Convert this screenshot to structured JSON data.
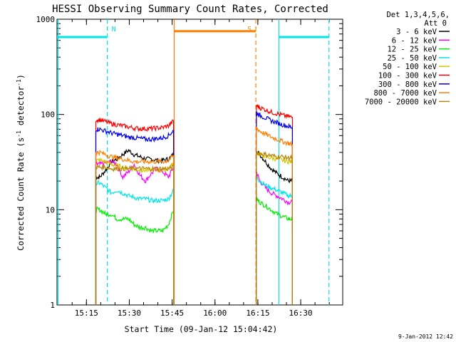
{
  "chart_data": {
    "type": "line",
    "title": "HESSI Observing Summary Count Rates, Corrected",
    "xlabel": "Start Time (09-Jan-12 15:04:42)",
    "ylabel_main": "Corrected Count Rate (s",
    "ylabel_sup1": "-1",
    "ylabel_mid": " detector",
    "ylabel_sup2": "-1",
    "ylabel_end": ")",
    "ylabel": "Corrected Count Rate (s-1 detector-1)",
    "yscale": "log",
    "ylim": [
      1,
      1000
    ],
    "xlim": [
      "15:04:42",
      "16:44:42"
    ],
    "x_ticks": [
      "15:15",
      "15:30",
      "15:45",
      "16:00",
      "16:15",
      "16:30"
    ],
    "x_tick_minutes": [
      10.3,
      25.3,
      40.3,
      55.3,
      70.3,
      85.3
    ],
    "y_ticks": [
      "1",
      "10",
      "100",
      "1000"
    ],
    "y_tick_values": [
      1,
      10,
      100,
      1000
    ],
    "legend_header": [
      "Det 1,3,4,5,6,",
      "Att 0"
    ],
    "legend_position": "outside-right",
    "timestamp": "9-Jan-2012 12:42",
    "flags": [
      {
        "label": "N",
        "color": "#00e6e6",
        "level": 650,
        "segments": [
          [
            0,
            17.6
          ],
          [
            77.7,
            95.2
          ]
        ]
      },
      {
        "label": "S",
        "color": "#ff7f00",
        "level": 750,
        "segments": [
          [
            41.0,
            69.6
          ]
        ]
      }
    ],
    "boundaries": [
      {
        "t": 0.4,
        "color": "#00e6e6",
        "style": "solid"
      },
      {
        "t": 17.6,
        "color": "#00e6e6",
        "style": "dashed"
      },
      {
        "t": 41.0,
        "color": "#ff7f00",
        "style": "solid"
      },
      {
        "t": 69.6,
        "color": "#ff7f00",
        "style": "dashed"
      },
      {
        "t": 77.7,
        "color": "#00e6e6",
        "style": "solid"
      },
      {
        "t": 95.2,
        "color": "#00e6e6",
        "style": "dashed"
      }
    ],
    "segments_minutes": [
      [
        13.5,
        41.0
      ],
      [
        69.6,
        82.5
      ]
    ],
    "series": [
      {
        "name": "3 - 6 keV",
        "color": "#000000",
        "seg1": [
          [
            13.6,
            22
          ],
          [
            15.0,
            22
          ],
          [
            17.0,
            26
          ],
          [
            19.0,
            32
          ],
          [
            21.0,
            34
          ],
          [
            23.0,
            38
          ],
          [
            25.0,
            42
          ],
          [
            27.0,
            38
          ],
          [
            29.0,
            36
          ],
          [
            31.0,
            34
          ],
          [
            33.0,
            34
          ],
          [
            35.0,
            33
          ],
          [
            37.0,
            33
          ],
          [
            39.0,
            34
          ],
          [
            40.8,
            38
          ]
        ],
        "seg2": [
          [
            69.8,
            42
          ],
          [
            71.0,
            38
          ],
          [
            73.0,
            32
          ],
          [
            75.0,
            27
          ],
          [
            77.0,
            24
          ],
          [
            79.0,
            22
          ],
          [
            81.0,
            20
          ],
          [
            82.4,
            20
          ]
        ]
      },
      {
        "name": "6 - 12 keV",
        "color": "#ff00ff",
        "seg1": [
          [
            13.6,
            30
          ],
          [
            15.0,
            30
          ],
          [
            17.0,
            31
          ],
          [
            19.0,
            32
          ],
          [
            21.0,
            30
          ],
          [
            23.0,
            22
          ],
          [
            25.0,
            25
          ],
          [
            27.0,
            30
          ],
          [
            29.0,
            23
          ],
          [
            31.0,
            20
          ],
          [
            33.0,
            24
          ],
          [
            35.0,
            27
          ],
          [
            37.0,
            25
          ],
          [
            39.0,
            22
          ],
          [
            40.8,
            28
          ]
        ],
        "seg2": [
          [
            69.8,
            25
          ],
          [
            71.0,
            20
          ],
          [
            73.0,
            17
          ],
          [
            75.0,
            15
          ],
          [
            77.0,
            14
          ],
          [
            79.0,
            13
          ],
          [
            81.0,
            12
          ],
          [
            82.4,
            12
          ]
        ]
      },
      {
        "name": "12 - 25 keV",
        "color": "#00ee00",
        "seg1": [
          [
            13.6,
            10
          ],
          [
            15.0,
            10
          ],
          [
            17.0,
            9
          ],
          [
            19.0,
            9
          ],
          [
            21.0,
            8
          ],
          [
            23.0,
            8
          ],
          [
            25.0,
            8
          ],
          [
            27.0,
            7
          ],
          [
            29.0,
            6.5
          ],
          [
            31.0,
            6.5
          ],
          [
            33.0,
            6
          ],
          [
            35.0,
            6
          ],
          [
            37.0,
            6
          ],
          [
            39.0,
            7
          ],
          [
            40.8,
            10
          ]
        ],
        "seg2": [
          [
            69.8,
            13
          ],
          [
            71.0,
            12
          ],
          [
            73.0,
            11
          ],
          [
            75.0,
            10
          ],
          [
            77.0,
            9
          ],
          [
            79.0,
            8.5
          ],
          [
            81.0,
            8
          ],
          [
            82.4,
            8
          ]
        ]
      },
      {
        "name": "25 - 50 keV",
        "color": "#00e6e6",
        "seg1": [
          [
            13.6,
            19
          ],
          [
            15.0,
            19
          ],
          [
            17.0,
            17
          ],
          [
            19.0,
            15
          ],
          [
            21.0,
            16
          ],
          [
            23.0,
            15
          ],
          [
            25.0,
            14
          ],
          [
            27.0,
            13.5
          ],
          [
            29.0,
            13
          ],
          [
            31.0,
            13
          ],
          [
            33.0,
            12.5
          ],
          [
            35.0,
            12.5
          ],
          [
            37.0,
            12.5
          ],
          [
            39.0,
            13
          ],
          [
            40.8,
            16
          ]
        ],
        "seg2": [
          [
            69.8,
            22
          ],
          [
            71.0,
            20
          ],
          [
            73.0,
            18
          ],
          [
            75.0,
            17
          ],
          [
            77.0,
            16
          ],
          [
            79.0,
            15
          ],
          [
            81.0,
            14
          ],
          [
            82.4,
            14
          ]
        ]
      },
      {
        "name": "50 - 100 keV",
        "color": "#d6c600",
        "seg1": [
          [
            13.6,
            33
          ],
          [
            15.0,
            33
          ],
          [
            17.0,
            32
          ],
          [
            19.0,
            30
          ],
          [
            21.0,
            29
          ],
          [
            23.0,
            28
          ],
          [
            25.0,
            27
          ],
          [
            27.0,
            27
          ],
          [
            29.0,
            26
          ],
          [
            31.0,
            26
          ],
          [
            33.0,
            26
          ],
          [
            35.0,
            26
          ],
          [
            37.0,
            26
          ],
          [
            39.0,
            27
          ],
          [
            40.8,
            31
          ]
        ],
        "seg2": [
          [
            69.8,
            40
          ],
          [
            71.0,
            38
          ],
          [
            73.0,
            36
          ],
          [
            75.0,
            35
          ],
          [
            77.0,
            34
          ],
          [
            79.0,
            33
          ],
          [
            81.0,
            32
          ],
          [
            82.4,
            32
          ]
        ]
      },
      {
        "name": "100 - 300 keV",
        "color": "#ff0000",
        "seg1": [
          [
            13.6,
            88
          ],
          [
            15.0,
            88
          ],
          [
            17.0,
            84
          ],
          [
            19.0,
            80
          ],
          [
            21.0,
            78
          ],
          [
            23.0,
            76
          ],
          [
            25.0,
            74
          ],
          [
            27.0,
            72
          ],
          [
            29.0,
            71
          ],
          [
            31.0,
            71
          ],
          [
            33.0,
            71
          ],
          [
            35.0,
            72
          ],
          [
            37.0,
            73
          ],
          [
            39.0,
            76
          ],
          [
            40.8,
            86
          ]
        ],
        "seg2": [
          [
            69.8,
            125
          ],
          [
            71.0,
            118
          ],
          [
            73.0,
            112
          ],
          [
            75.0,
            106
          ],
          [
            77.0,
            102
          ],
          [
            79.0,
            98
          ],
          [
            81.0,
            95
          ],
          [
            82.4,
            93
          ]
        ]
      },
      {
        "name": "300 - 800 keV",
        "color": "#0000ee",
        "seg1": [
          [
            13.6,
            70
          ],
          [
            15.0,
            70
          ],
          [
            17.0,
            67
          ],
          [
            19.0,
            64
          ],
          [
            21.0,
            62
          ],
          [
            23.0,
            60
          ],
          [
            25.0,
            58
          ],
          [
            27.0,
            57
          ],
          [
            29.0,
            56
          ],
          [
            31.0,
            55
          ],
          [
            33.0,
            55
          ],
          [
            35.0,
            56
          ],
          [
            37.0,
            57
          ],
          [
            39.0,
            60
          ],
          [
            40.8,
            68
          ]
        ],
        "seg2": [
          [
            69.8,
            105
          ],
          [
            71.0,
            98
          ],
          [
            73.0,
            92
          ],
          [
            75.0,
            86
          ],
          [
            77.0,
            82
          ],
          [
            79.0,
            78
          ],
          [
            81.0,
            75
          ],
          [
            82.4,
            73
          ]
        ]
      },
      {
        "name": "800 - 7000 keV",
        "color": "#ff7f00",
        "seg1": [
          [
            13.6,
            40
          ],
          [
            15.0,
            40
          ],
          [
            17.0,
            38
          ],
          [
            19.0,
            36
          ],
          [
            21.0,
            35
          ],
          [
            23.0,
            34
          ],
          [
            25.0,
            33
          ],
          [
            27.0,
            32
          ],
          [
            29.0,
            32
          ],
          [
            31.0,
            32
          ],
          [
            33.0,
            32
          ],
          [
            35.0,
            32
          ],
          [
            37.0,
            32
          ],
          [
            39.0,
            33
          ],
          [
            40.8,
            37
          ]
        ],
        "seg2": [
          [
            69.8,
            72
          ],
          [
            71.0,
            67
          ],
          [
            73.0,
            62
          ],
          [
            75.0,
            58
          ],
          [
            77.0,
            55
          ],
          [
            79.0,
            52
          ],
          [
            81.0,
            50
          ],
          [
            82.4,
            48
          ]
        ]
      },
      {
        "name": "7000 - 20000 keV",
        "color": "#b8860b",
        "seg1": [
          [
            13.6,
            28
          ],
          [
            15.0,
            28
          ],
          [
            17.0,
            28
          ],
          [
            19.0,
            27
          ],
          [
            21.0,
            27
          ],
          [
            23.0,
            27
          ],
          [
            25.0,
            27
          ],
          [
            27.0,
            27
          ],
          [
            29.0,
            27
          ],
          [
            31.0,
            27
          ],
          [
            33.0,
            27
          ],
          [
            35.0,
            27
          ],
          [
            37.0,
            27
          ],
          [
            39.0,
            27
          ],
          [
            40.8,
            28
          ]
        ],
        "seg2": [
          [
            69.8,
            40
          ],
          [
            71.0,
            39
          ],
          [
            73.0,
            38
          ],
          [
            75.0,
            37
          ],
          [
            77.0,
            36
          ],
          [
            79.0,
            36
          ],
          [
            81.0,
            35
          ],
          [
            82.4,
            35
          ]
        ]
      }
    ]
  }
}
